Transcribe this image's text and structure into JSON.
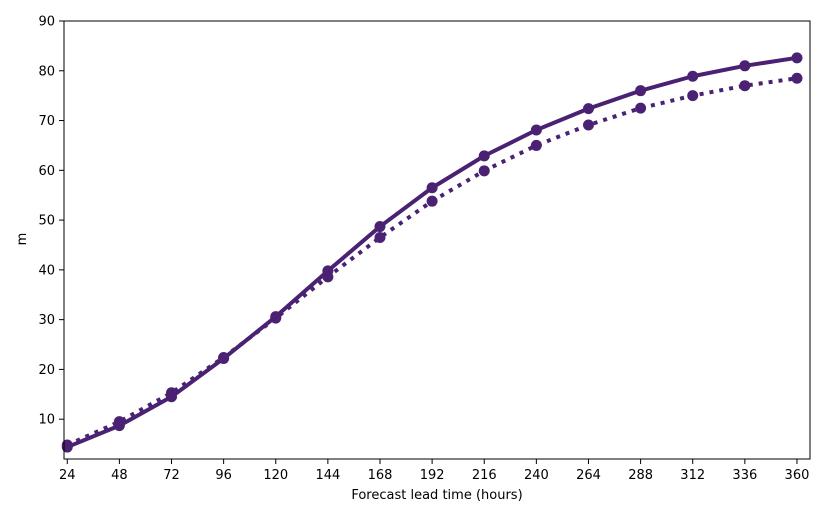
{
  "chart_data": {
    "type": "line",
    "title": "",
    "xlabel": "Forecast lead time (hours)",
    "ylabel": "m",
    "xlim": [
      22.5,
      366
    ],
    "ylim": [
      2,
      90
    ],
    "x": [
      24,
      48,
      72,
      96,
      120,
      144,
      168,
      192,
      216,
      240,
      264,
      288,
      312,
      336,
      360
    ],
    "x_ticks": [
      24,
      48,
      72,
      96,
      120,
      144,
      168,
      192,
      216,
      240,
      264,
      288,
      312,
      336,
      360
    ],
    "y_ticks": [
      10,
      20,
      30,
      40,
      50,
      60,
      70,
      80,
      90
    ],
    "grid": false,
    "legend": "none",
    "series": [
      {
        "style": "solid",
        "color": "#4a2173",
        "values": [
          4.4,
          8.7,
          14.5,
          22.2,
          30.6,
          39.8,
          48.7,
          56.5,
          62.9,
          68.1,
          72.4,
          76.0,
          78.9,
          81.0,
          82.6
        ]
      },
      {
        "style": "dotted",
        "color": "#4a2173",
        "values": [
          4.8,
          9.5,
          15.3,
          22.4,
          30.3,
          38.6,
          46.5,
          53.8,
          59.9,
          65.0,
          69.1,
          72.5,
          75.0,
          77.0,
          78.5
        ]
      }
    ]
  }
}
